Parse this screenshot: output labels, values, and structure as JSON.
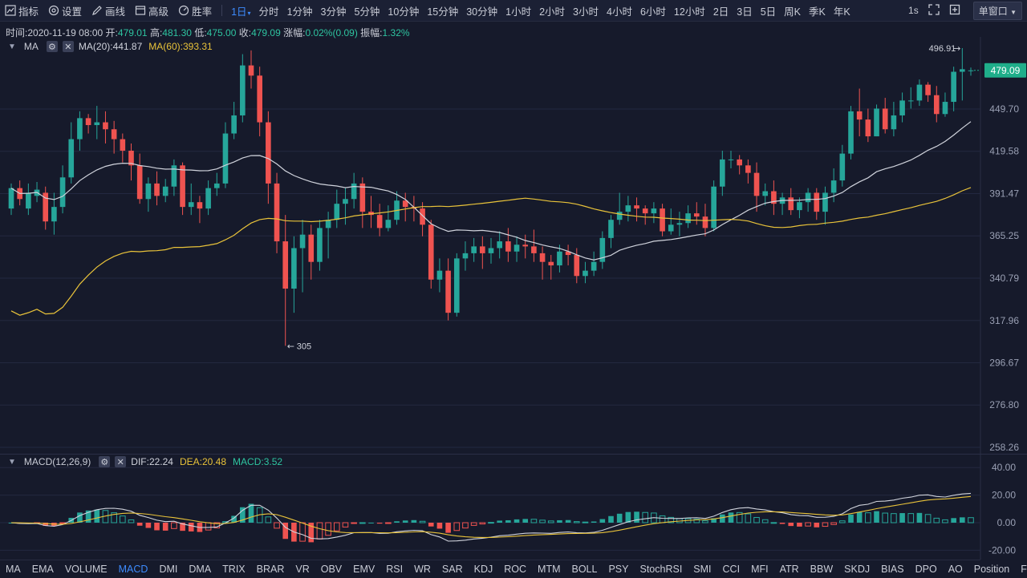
{
  "toolbar": {
    "items": [
      {
        "label": "指标",
        "icon": "indicator-icon"
      },
      {
        "label": "设置",
        "icon": "gear-icon"
      },
      {
        "label": "画线",
        "icon": "pencil-icon"
      },
      {
        "label": "高级",
        "icon": "advanced-chart-icon"
      },
      {
        "label": "胜率",
        "icon": "gauge-icon"
      }
    ],
    "intervals": [
      "1日",
      "分时",
      "1分钟",
      "3分钟",
      "5分钟",
      "10分钟",
      "15分钟",
      "30分钟",
      "1小时",
      "2小时",
      "3小时",
      "4小时",
      "6小时",
      "12小时",
      "2日",
      "3日",
      "5日",
      "周K",
      "季K",
      "年K"
    ],
    "active_interval": "1日",
    "refresh": "1s",
    "window_mode": "单窗口"
  },
  "info": {
    "time_label": "时间:",
    "time": "2020-11-19 08:00",
    "open_label": "开:",
    "open": "479.01",
    "high_label": "高:",
    "high": "481.30",
    "low_label": "低:",
    "low": "475.00",
    "close_label": "收:",
    "close": "479.09",
    "change_label": "涨幅:",
    "change": "0.02%(0.09)",
    "amp_label": "振幅:",
    "amp": "1.32%"
  },
  "ma_legend": {
    "name": "MA",
    "ma20": "MA(20):441.87",
    "ma60": "MA(60):393.31"
  },
  "macd_legend": {
    "name": "MACD(12,26,9)",
    "dif": "DIF:22.24",
    "dea": "DEA:20.48",
    "macd": "MACD:3.52"
  },
  "colors": {
    "bg": "#161a2b",
    "up": "#26a69a",
    "down": "#ef5350",
    "ma20": "#d0d3dc",
    "ma60": "#e9c33a",
    "grid": "#232840",
    "price_badge": "#1fae8a"
  },
  "price_axis": {
    "ticks": [
      "449.70",
      "419.58",
      "391.47",
      "365.25",
      "340.79",
      "317.96",
      "296.67",
      "276.80",
      "258.26"
    ],
    "current_price": "479.09",
    "high_marker": "496.91",
    "low_marker": "305"
  },
  "macd_axis": {
    "ticks": [
      "40.00",
      "20.00",
      "0.00",
      "-20.00"
    ]
  },
  "bottom_tabs": [
    "MA",
    "EMA",
    "VOLUME",
    "MACD",
    "DMI",
    "DMA",
    "TRIX",
    "BRAR",
    "VR",
    "OBV",
    "EMV",
    "RSI",
    "WR",
    "SAR",
    "KDJ",
    "ROC",
    "MTM",
    "BOLL",
    "PSY",
    "StochRSI",
    "SMI",
    "CCI",
    "MFI",
    "ATR",
    "BBW",
    "SKDJ",
    "BIAS",
    "DPO",
    "AO",
    "Position",
    "Fundflow"
  ],
  "active_tab": "MACD",
  "chart_data": {
    "type": "candlestick",
    "y_scale": "log",
    "ylim": [
      258.26,
      496.91
    ],
    "series": [
      {
        "name": "MA(20)"
      },
      {
        "name": "MA(60)"
      }
    ],
    "candles": [
      [
        382,
        395,
        398,
        378
      ],
      [
        395,
        388,
        400,
        384
      ],
      [
        382,
        392,
        398,
        378
      ],
      [
        390,
        394,
        399,
        386
      ],
      [
        392,
        374,
        396,
        369
      ],
      [
        374,
        383,
        392,
        366
      ],
      [
        383,
        402,
        410,
        379
      ],
      [
        402,
        428,
        440,
        398
      ],
      [
        428,
        443,
        448,
        420
      ],
      [
        443,
        438,
        446,
        432
      ],
      [
        438,
        440,
        452,
        428
      ],
      [
        440,
        435,
        448,
        425
      ],
      [
        435,
        428,
        441,
        418
      ],
      [
        428,
        420,
        432,
        412
      ],
      [
        420,
        410,
        425,
        400
      ],
      [
        410,
        388,
        418,
        385
      ],
      [
        388,
        398,
        402,
        380
      ],
      [
        398,
        390,
        406,
        384
      ],
      [
        390,
        396,
        401,
        386
      ],
      [
        396,
        410,
        414,
        390
      ],
      [
        410,
        383,
        412,
        378
      ],
      [
        383,
        386,
        398,
        378
      ],
      [
        386,
        382,
        390,
        373
      ],
      [
        382,
        395,
        400,
        378
      ],
      [
        395,
        398,
        405,
        390
      ],
      [
        398,
        432,
        440,
        395
      ],
      [
        432,
        445,
        455,
        428
      ],
      [
        445,
        483,
        492,
        440
      ],
      [
        483,
        475,
        495,
        465
      ],
      [
        475,
        440,
        482,
        430
      ],
      [
        440,
        398,
        448,
        385
      ],
      [
        398,
        362,
        405,
        355
      ],
      [
        362,
        335,
        378,
        305
      ],
      [
        335,
        358,
        365,
        322
      ],
      [
        358,
        366,
        375,
        333
      ],
      [
        366,
        350,
        372,
        340
      ],
      [
        350,
        370,
        375,
        345
      ],
      [
        370,
        375,
        380,
        352
      ],
      [
        375,
        385,
        394,
        370
      ],
      [
        385,
        388,
        395,
        372
      ],
      [
        388,
        398,
        405,
        382
      ],
      [
        398,
        380,
        402,
        370
      ],
      [
        380,
        378,
        390,
        370
      ],
      [
        378,
        370,
        385,
        365
      ],
      [
        370,
        375,
        384,
        368
      ],
      [
        375,
        387,
        393,
        372
      ],
      [
        387,
        383,
        392,
        374
      ],
      [
        383,
        382,
        390,
        374
      ],
      [
        382,
        372,
        386,
        365
      ],
      [
        372,
        340,
        375,
        335
      ],
      [
        340,
        345,
        352,
        333
      ],
      [
        345,
        322,
        352,
        318
      ],
      [
        322,
        352,
        355,
        320
      ],
      [
        352,
        355,
        362,
        345
      ],
      [
        355,
        359,
        364,
        350
      ],
      [
        359,
        355,
        365,
        346
      ],
      [
        355,
        358,
        364,
        349
      ],
      [
        358,
        362,
        368,
        352
      ],
      [
        362,
        356,
        370,
        350
      ],
      [
        356,
        360,
        365,
        350
      ],
      [
        360,
        359,
        366,
        352
      ],
      [
        359,
        355,
        369,
        350
      ],
      [
        355,
        350,
        359,
        340
      ],
      [
        350,
        348,
        354,
        340
      ],
      [
        348,
        356,
        360,
        344
      ],
      [
        356,
        354,
        360,
        348
      ],
      [
        354,
        342,
        358,
        338
      ],
      [
        342,
        345,
        350,
        338
      ],
      [
        345,
        350,
        356,
        342
      ],
      [
        350,
        364,
        368,
        346
      ],
      [
        364,
        375,
        378,
        358
      ],
      [
        375,
        380,
        392,
        372
      ],
      [
        380,
        384,
        390,
        374
      ],
      [
        384,
        382,
        389,
        374
      ],
      [
        382,
        379,
        384,
        372
      ],
      [
        379,
        382,
        386,
        373
      ],
      [
        382,
        368,
        385,
        365
      ],
      [
        368,
        372,
        382,
        366
      ],
      [
        372,
        373,
        380,
        365
      ],
      [
        373,
        379,
        384,
        370
      ],
      [
        379,
        377,
        386,
        372
      ],
      [
        377,
        370,
        385,
        365
      ],
      [
        370,
        396,
        400,
        368
      ],
      [
        396,
        414,
        420,
        390
      ],
      [
        414,
        414,
        420,
        408
      ],
      [
        414,
        410,
        417,
        404
      ],
      [
        410,
        405,
        414,
        398
      ],
      [
        405,
        390,
        412,
        380
      ],
      [
        390,
        393,
        398,
        384
      ],
      [
        393,
        385,
        400,
        378
      ],
      [
        385,
        389,
        392,
        378
      ],
      [
        389,
        381,
        395,
        378
      ],
      [
        381,
        386,
        389,
        376
      ],
      [
        386,
        392,
        395,
        380
      ],
      [
        392,
        380,
        395,
        375
      ],
      [
        380,
        392,
        396,
        372
      ],
      [
        392,
        400,
        408,
        386
      ],
      [
        400,
        418,
        424,
        396
      ],
      [
        418,
        448,
        452,
        414
      ],
      [
        448,
        442,
        465,
        430
      ],
      [
        442,
        430,
        450,
        426
      ],
      [
        430,
        450,
        453,
        430
      ],
      [
        450,
        435,
        458,
        432
      ],
      [
        435,
        445,
        455,
        430
      ],
      [
        445,
        456,
        462,
        440
      ],
      [
        456,
        456,
        466,
        450
      ],
      [
        456,
        468,
        472,
        452
      ],
      [
        468,
        460,
        470,
        455
      ],
      [
        460,
        446,
        467,
        440
      ],
      [
        446,
        455,
        462,
        444
      ],
      [
        455,
        478,
        482,
        448
      ],
      [
        478,
        480,
        496.91,
        456
      ],
      [
        479,
        479.09,
        481.3,
        475
      ]
    ]
  }
}
